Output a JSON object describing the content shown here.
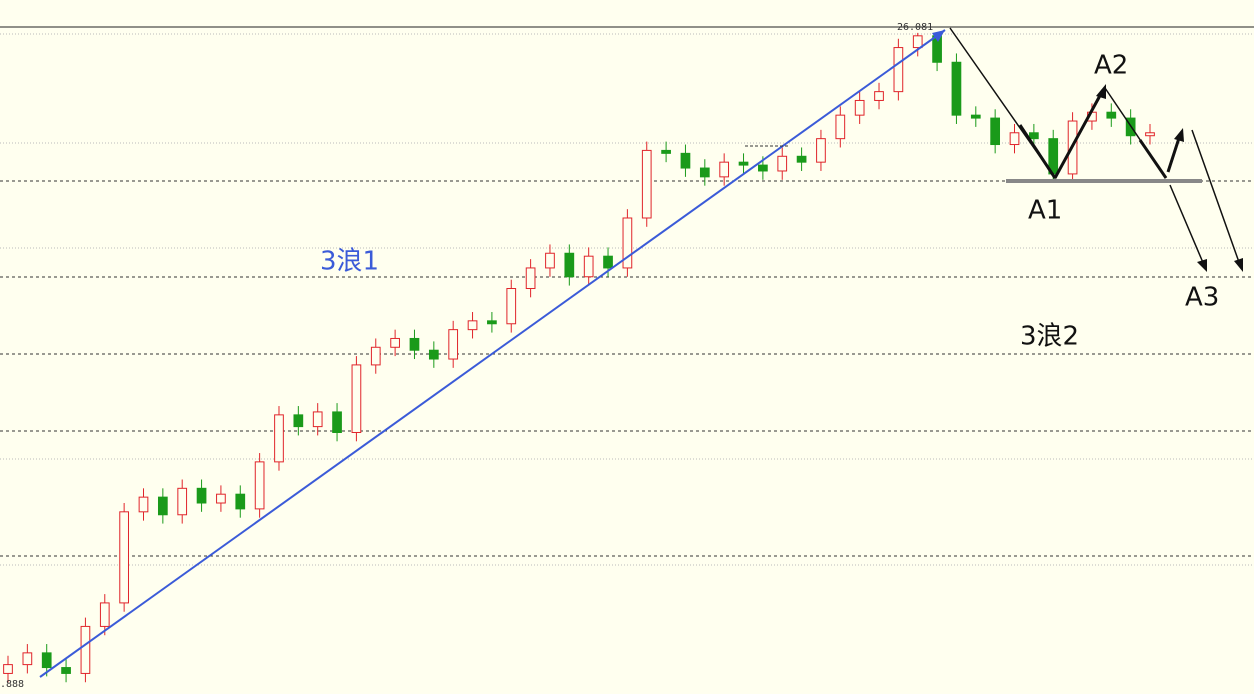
{
  "chart_data": {
    "type": "candlestick",
    "ylim": [
      23.83,
      26.1
    ],
    "up_color": "#e0242a",
    "down_color": "#1a9a1a",
    "background": "#ffffef",
    "price_labels": [
      "26.081",
      ".888"
    ],
    "annotations": [
      "3浪1",
      "A2",
      "A1",
      "A3",
      "3浪2"
    ],
    "open": [
      23.9,
      23.93,
      23.97,
      23.92,
      23.9,
      24.06,
      24.14,
      24.45,
      24.5,
      24.44,
      24.53,
      24.48,
      24.51,
      24.46,
      24.62,
      24.78,
      24.74,
      24.79,
      24.72,
      24.95,
      25.01,
      25.04,
      25.0,
      24.97,
      25.07,
      25.1,
      25.09,
      25.21,
      25.28,
      25.33,
      25.25,
      25.32,
      25.28,
      25.45,
      25.68,
      25.67,
      25.62,
      25.59,
      25.64,
      25.63,
      25.61,
      25.66,
      25.64,
      25.72,
      25.8,
      25.85,
      25.88,
      26.03,
      26.07,
      25.98,
      25.8,
      25.79,
      25.7,
      25.74,
      25.72,
      25.6,
      25.78,
      25.81,
      25.79,
      25.73
    ],
    "high": [
      23.96,
      24.0,
      24.0,
      23.95,
      24.09,
      24.17,
      24.48,
      24.53,
      24.53,
      24.56,
      24.56,
      24.54,
      24.54,
      24.65,
      24.81,
      24.81,
      24.82,
      24.82,
      24.98,
      25.04,
      25.07,
      25.07,
      25.03,
      25.1,
      25.13,
      25.13,
      25.24,
      25.31,
      25.36,
      25.36,
      25.35,
      25.35,
      25.48,
      25.71,
      25.71,
      25.7,
      25.65,
      25.67,
      25.67,
      25.66,
      25.69,
      25.69,
      25.75,
      25.83,
      25.88,
      25.91,
      26.06,
      26.08,
      26.08,
      26.01,
      25.83,
      25.82,
      25.77,
      25.77,
      25.75,
      25.81,
      25.84,
      25.84,
      25.82,
      25.77
    ],
    "low": [
      23.87,
      23.9,
      23.89,
      23.87,
      23.87,
      24.03,
      24.11,
      24.42,
      24.41,
      24.41,
      24.45,
      24.45,
      24.43,
      24.43,
      24.59,
      24.71,
      24.71,
      24.69,
      24.69,
      24.92,
      24.98,
      24.97,
      24.94,
      24.94,
      25.04,
      25.06,
      25.06,
      25.18,
      25.25,
      25.22,
      25.22,
      25.25,
      25.25,
      25.42,
      25.64,
      25.59,
      25.56,
      25.56,
      25.6,
      25.58,
      25.58,
      25.61,
      25.61,
      25.69,
      25.77,
      25.82,
      25.85,
      26.0,
      25.95,
      25.77,
      25.76,
      25.67,
      25.67,
      25.69,
      25.57,
      25.57,
      25.75,
      25.76,
      25.7,
      25.7
    ],
    "close": [
      23.93,
      23.97,
      23.92,
      23.9,
      24.06,
      24.14,
      24.45,
      24.5,
      24.44,
      24.53,
      24.48,
      24.51,
      24.46,
      24.62,
      24.78,
      24.74,
      24.79,
      24.72,
      24.95,
      25.01,
      25.04,
      25.0,
      24.97,
      25.07,
      25.1,
      25.09,
      25.21,
      25.28,
      25.33,
      25.25,
      25.32,
      25.28,
      25.45,
      25.68,
      25.67,
      25.62,
      25.59,
      25.64,
      25.63,
      25.61,
      25.66,
      25.64,
      25.72,
      25.8,
      25.85,
      25.88,
      26.03,
      26.07,
      25.98,
      25.8,
      25.79,
      25.7,
      25.74,
      25.72,
      25.6,
      25.78,
      25.81,
      25.79,
      25.73,
      25.74
    ]
  }
}
